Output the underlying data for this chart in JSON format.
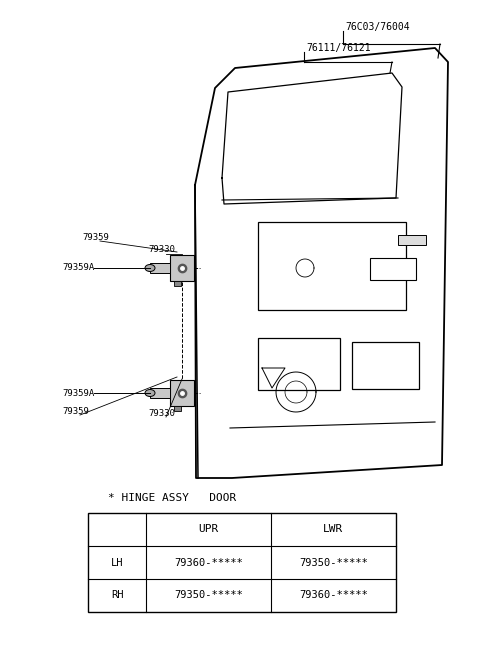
{
  "bg_color": "#ffffff",
  "line_color": "#000000",
  "title": "* HINGE ASSY   DOOR",
  "table_headers": [
    "",
    "UPR",
    "LWR"
  ],
  "table_rows": [
    [
      "LH",
      "79360-*****",
      "79350-*****"
    ],
    [
      "RH",
      "79350-*****",
      "79360-*****"
    ]
  ],
  "label_76C03": "76C03/76004",
  "label_76111": "76111/76121",
  "label_79359_u": "79359",
  "label_79330_u": "79330",
  "label_79359A_u": "79359A",
  "label_79359A_l": "79359A",
  "label_79359_l": "79359",
  "label_79330_l": "79330"
}
